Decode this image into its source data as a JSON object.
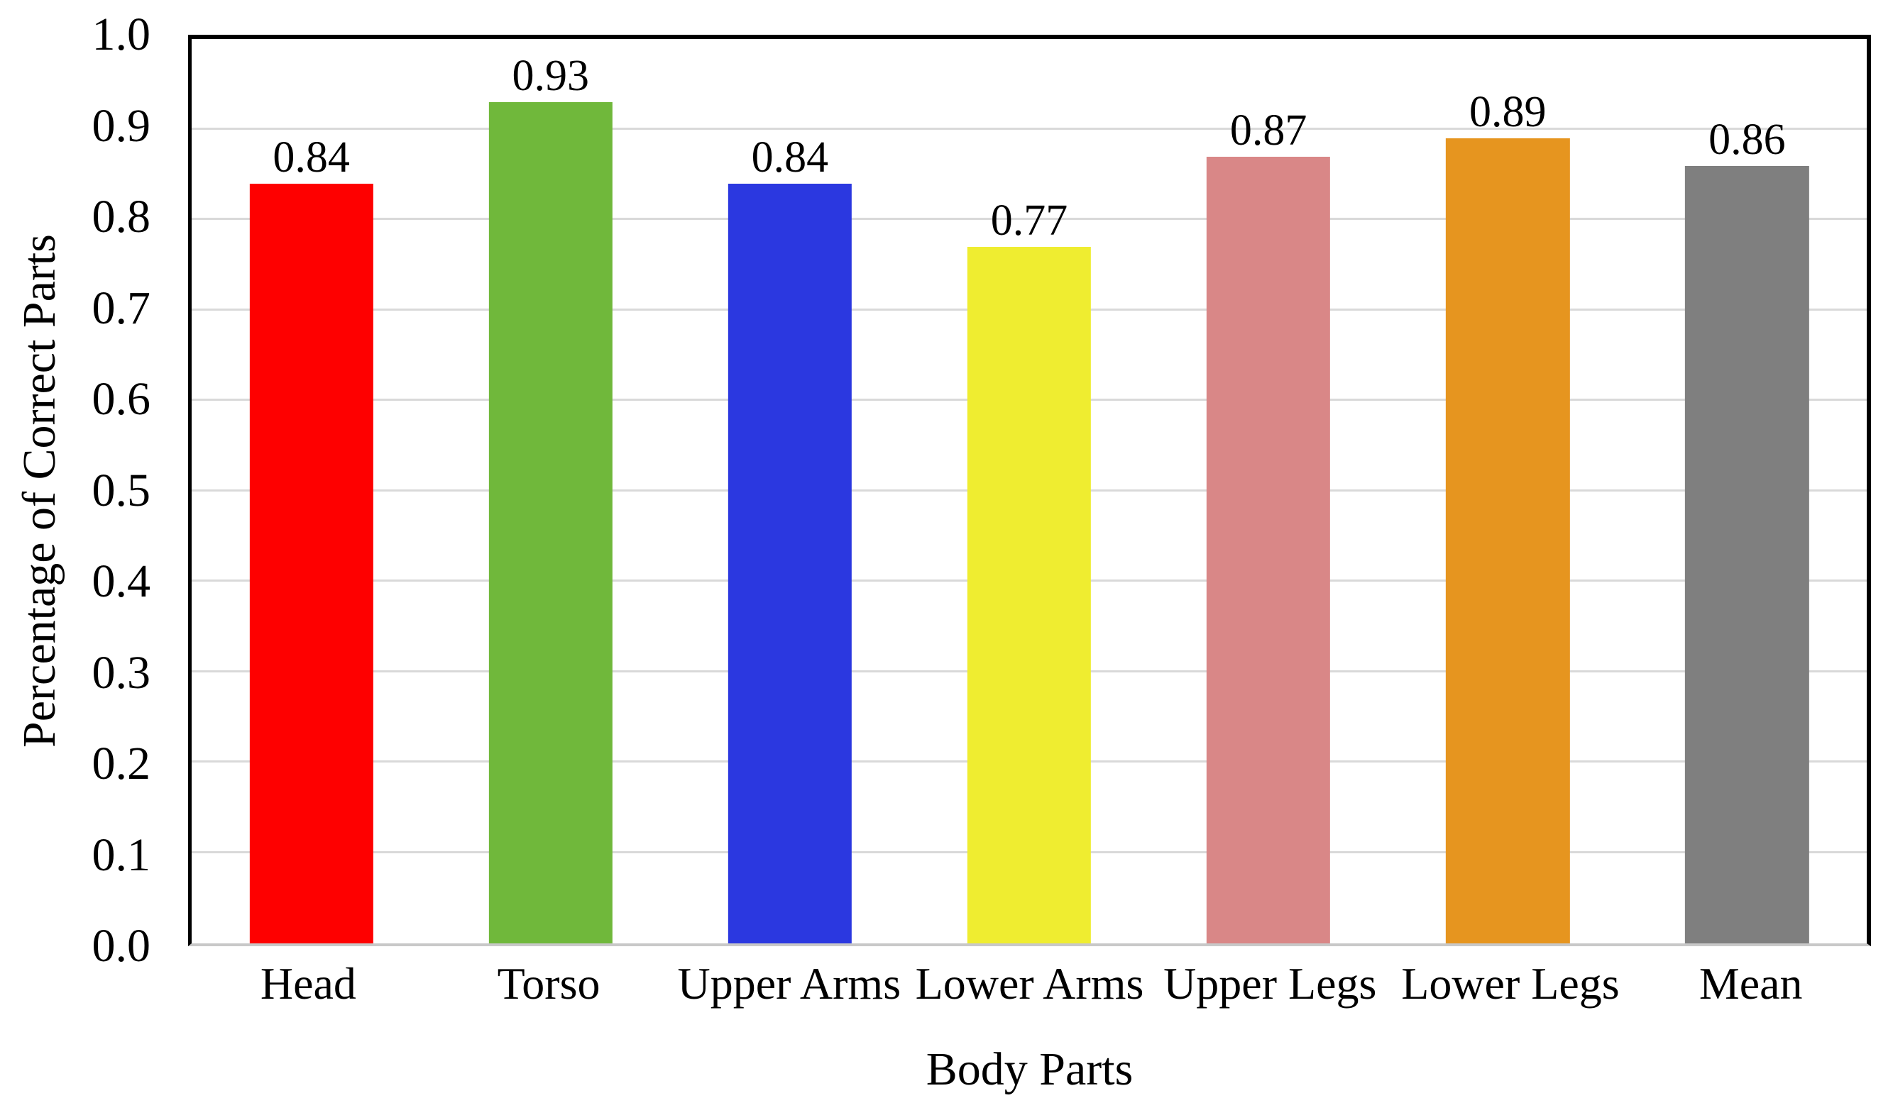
{
  "chart_data": {
    "type": "bar",
    "title": "",
    "xlabel": "Body Parts",
    "ylabel": "Percentage of Correct Parts",
    "categories": [
      "Head",
      "Torso",
      "Upper Arms",
      "Lower Arms",
      "Upper Legs",
      "Lower Legs",
      "Mean"
    ],
    "values": [
      0.84,
      0.93,
      0.84,
      0.77,
      0.87,
      0.89,
      0.86
    ],
    "value_labels": [
      "0.84",
      "0.93",
      "0.84",
      "0.77",
      "0.87",
      "0.89",
      "0.86"
    ],
    "bar_colors": [
      "#fe0000",
      "#70b83b",
      "#2b38e0",
      "#efed30",
      "#d98787",
      "#e6951f",
      "#7f7f7f"
    ],
    "ylim": [
      0.0,
      1.0
    ],
    "yticks": [
      "1.0",
      "0.9",
      "0.8",
      "0.7",
      "0.6",
      "0.5",
      "0.4",
      "0.3",
      "0.2",
      "0.1",
      "0.0"
    ],
    "grid": "horizontal-major",
    "legend": "none",
    "layout": {
      "background": "#ffffff",
      "gridline_color": "#d9d9d9",
      "baseline_color": "#c8c8c8",
      "border_color": "#000000",
      "text_color": "#000000",
      "bar_gap_ratio": 0.483
    }
  }
}
